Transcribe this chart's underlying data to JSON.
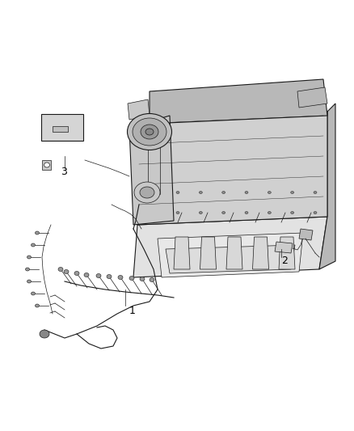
{
  "background_color": "#ffffff",
  "fig_width": 4.38,
  "fig_height": 5.33,
  "dpi": 100,
  "label_1": "1",
  "label_2": "2",
  "label_3": "3",
  "line_color": "#1a1a1a",
  "text_color": "#000000",
  "font_size": 9,
  "engine_gray1": "#e2e2e2",
  "engine_gray2": "#d0d0d0",
  "engine_gray3": "#b8b8b8",
  "engine_gray4": "#c8c8c8"
}
